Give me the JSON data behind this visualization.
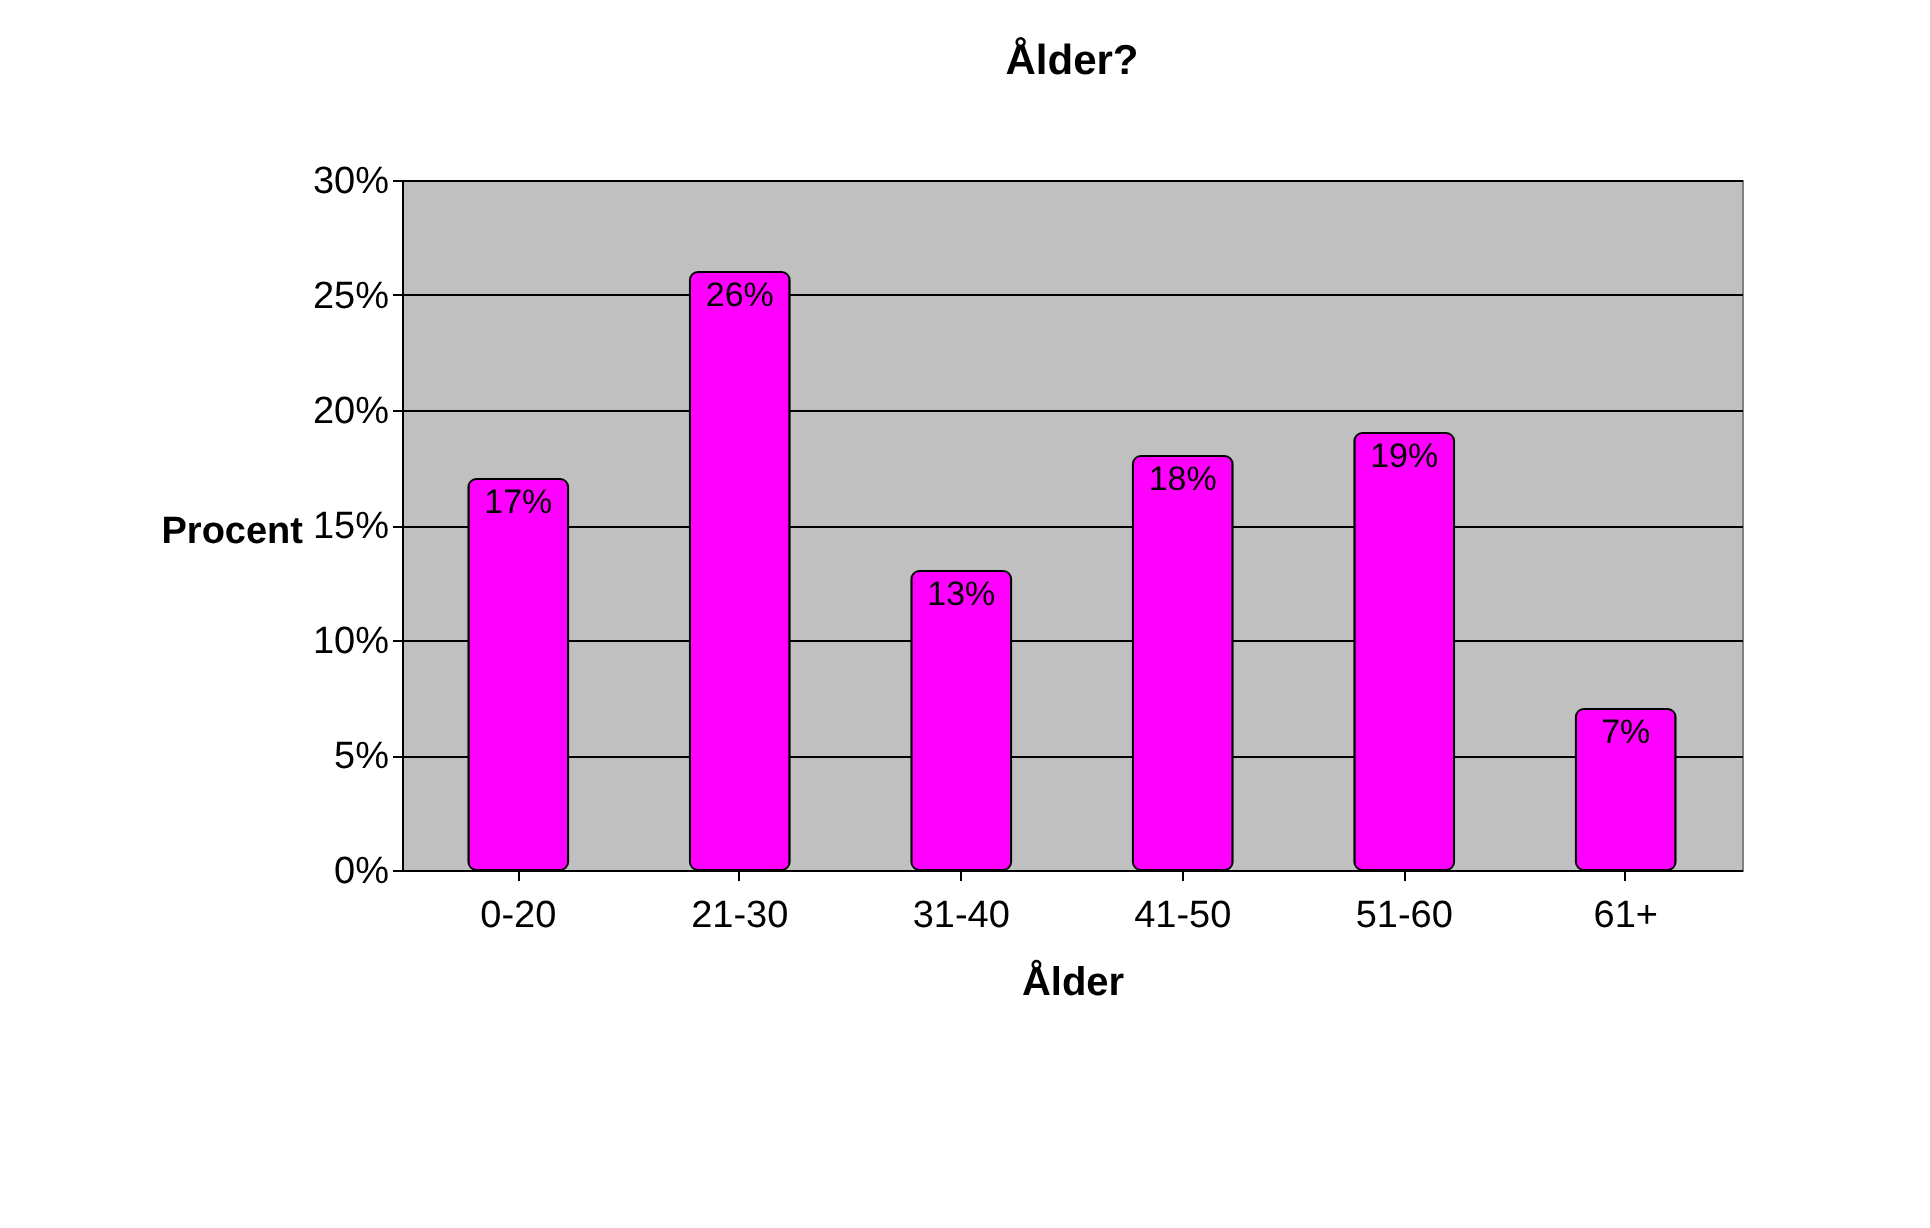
{
  "chart_data": {
    "type": "bar",
    "title": "Ålder?",
    "xlabel": "Ålder",
    "ylabel": "Procent",
    "categories": [
      "0-20",
      "21-30",
      "31-40",
      "41-50",
      "51-60",
      "61+"
    ],
    "values": [
      17,
      26,
      13,
      18,
      19,
      7
    ],
    "value_labels": [
      "17%",
      "26%",
      "13%",
      "18%",
      "19%",
      "7%"
    ],
    "color": "#ff00ff",
    "ylim": [
      0,
      30
    ],
    "yticks": [
      {
        "value": 0,
        "label": "0%"
      },
      {
        "value": 5,
        "label": "5%"
      },
      {
        "value": 10,
        "label": "10%"
      },
      {
        "value": 15,
        "label": "15%"
      },
      {
        "value": 20,
        "label": "20%"
      },
      {
        "value": 25,
        "label": "25%"
      },
      {
        "value": 30,
        "label": "30%"
      }
    ],
    "grid": "y"
  }
}
